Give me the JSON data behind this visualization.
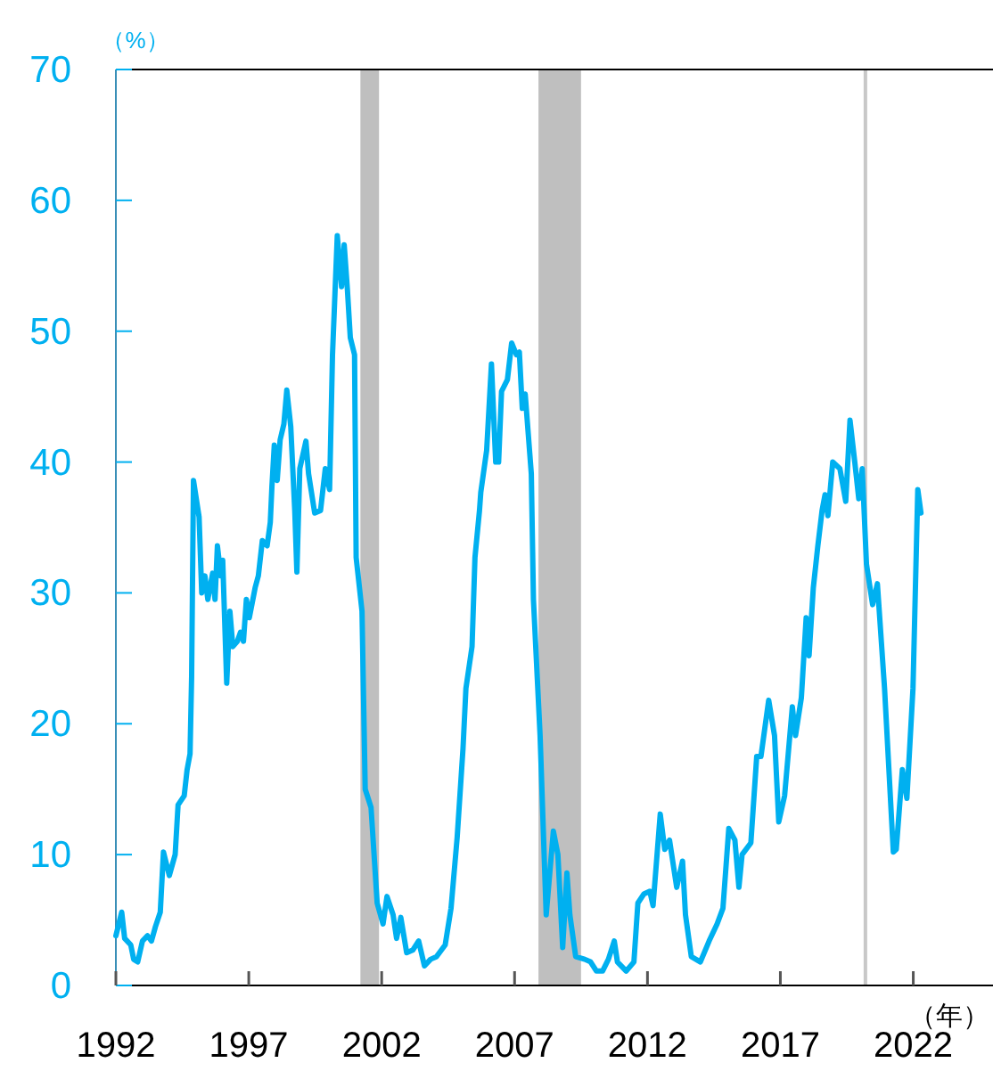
{
  "chart_data": {
    "type": "line",
    "ylabel": "（%）",
    "xlabel": "（年）",
    "xlim": [
      1992,
      2025
    ],
    "ylim": [
      0,
      70
    ],
    "xticks": [
      1992,
      1997,
      2002,
      2007,
      2012,
      2017,
      2022
    ],
    "yticks": [
      0,
      10,
      20,
      30,
      40,
      50,
      60,
      70
    ],
    "bands": [
      {
        "axis": "x",
        "from": 2001.2,
        "to": 2001.9,
        "color": "#bfbfbf"
      },
      {
        "axis": "x",
        "from": 2007.9,
        "to": 2009.5,
        "color": "#bfbfbf"
      }
    ],
    "ref_lines": [
      {
        "axis": "x",
        "value": 2020.2,
        "color": "#c8c8c8"
      }
    ],
    "x": [
      1992.0,
      1992.22,
      1992.33,
      1992.56,
      1992.67,
      1992.82,
      1993.0,
      1993.19,
      1993.34,
      1993.49,
      1993.67,
      1993.79,
      1994.01,
      1994.23,
      1994.34,
      1994.57,
      1994.68,
      1994.79,
      1994.85,
      1994.92,
      1995.13,
      1995.23,
      1995.35,
      1995.46,
      1995.64,
      1995.73,
      1995.82,
      1995.95,
      1996.02,
      1996.17,
      1996.29,
      1996.4,
      1996.57,
      1996.69,
      1996.8,
      1996.91,
      1997.02,
      1997.24,
      1997.36,
      1997.51,
      1997.69,
      1997.81,
      1997.87,
      1997.96,
      1998.07,
      1998.18,
      1998.32,
      1998.43,
      1998.58,
      1998.73,
      1998.81,
      1998.92,
      1999.15,
      1999.25,
      1999.48,
      1999.7,
      1999.88,
      2000.04,
      2000.15,
      2000.33,
      2000.49,
      2000.59,
      2000.71,
      2000.82,
      2000.98,
      2001.04,
      2001.26,
      2001.38,
      2001.6,
      2001.83,
      2002.05,
      2002.2,
      2002.43,
      2002.56,
      2002.72,
      2002.94,
      2003.17,
      2003.39,
      2003.61,
      2003.84,
      2004.06,
      2004.39,
      2004.61,
      2004.84,
      2005.06,
      2005.17,
      2005.4,
      2005.51,
      2005.68,
      2005.73,
      2005.95,
      2006.13,
      2006.29,
      2006.4,
      2006.51,
      2006.73,
      2006.89,
      2007.07,
      2007.18,
      2007.29,
      2007.4,
      2007.63,
      2007.71,
      2007.96,
      2008.19,
      2008.46,
      2008.63,
      2008.81,
      2008.97,
      2009.08,
      2009.3,
      2009.64,
      2009.86,
      2010.08,
      2010.31,
      2010.53,
      2010.75,
      2010.87,
      2011.2,
      2011.49,
      2011.64,
      2011.87,
      2012.09,
      2012.21,
      2012.48,
      2012.65,
      2012.83,
      2013.1,
      2013.32,
      2013.43,
      2013.65,
      2013.99,
      2014.32,
      2014.62,
      2014.84,
      2015.06,
      2015.29,
      2015.44,
      2015.56,
      2015.89,
      2016.11,
      2016.27,
      2016.56,
      2016.78,
      2016.94,
      2017.16,
      2017.45,
      2017.57,
      2017.79,
      2017.97,
      2018.08,
      2018.24,
      2018.41,
      2018.57,
      2018.68,
      2018.79,
      2018.97,
      2019.24,
      2019.46,
      2019.62,
      2019.8,
      2019.95,
      2020.08,
      2020.24,
      2020.47,
      2020.65,
      2020.92,
      2021.25,
      2021.36,
      2021.59,
      2021.76,
      2021.99,
      2022.17,
      2022.29
    ],
    "series": [
      {
        "color": "#00b0f0",
        "values": [
          3.8,
          5.6,
          3.6,
          3.1,
          2.0,
          1.8,
          3.4,
          3.8,
          3.4,
          4.5,
          5.6,
          10.2,
          8.4,
          10.0,
          13.8,
          14.5,
          16.5,
          17.7,
          23.6,
          38.6,
          35.8,
          30.0,
          31.3,
          29.5,
          31.5,
          29.5,
          33.6,
          31.3,
          32.5,
          23.1,
          28.6,
          25.9,
          26.3,
          27.0,
          26.3,
          29.5,
          28.1,
          30.4,
          31.3,
          34.0,
          33.6,
          35.4,
          38.1,
          41.3,
          38.6,
          41.7,
          42.9,
          45.5,
          42.7,
          36.3,
          31.6,
          39.5,
          41.6,
          39.1,
          36.1,
          36.3,
          39.5,
          37.9,
          48.2,
          57.3,
          53.4,
          56.6,
          53.2,
          49.5,
          48.2,
          32.7,
          28.6,
          15.0,
          13.6,
          6.3,
          4.7,
          6.8,
          5.4,
          3.6,
          5.2,
          2.5,
          2.7,
          3.4,
          1.5,
          2.0,
          2.2,
          3.1,
          5.9,
          11.3,
          18.1,
          22.7,
          25.9,
          32.7,
          36.3,
          37.7,
          40.9,
          47.5,
          40.0,
          40.0,
          45.4,
          46.3,
          49.1,
          48.2,
          48.4,
          44.1,
          45.2,
          39.1,
          29.5,
          19.1,
          5.4,
          11.8,
          10.0,
          2.9,
          8.6,
          5.4,
          2.2,
          2.0,
          1.8,
          1.1,
          1.1,
          2.0,
          3.4,
          1.8,
          1.1,
          1.8,
          6.3,
          7.0,
          7.2,
          6.1,
          13.1,
          10.4,
          11.1,
          7.5,
          9.5,
          5.4,
          2.2,
          1.8,
          3.4,
          4.7,
          5.9,
          12.0,
          11.1,
          7.5,
          10.0,
          10.9,
          17.5,
          17.5,
          21.8,
          19.1,
          12.5,
          14.5,
          21.3,
          19.1,
          22.0,
          28.1,
          25.2,
          30.4,
          33.6,
          36.3,
          37.5,
          35.9,
          40.0,
          39.5,
          37.0,
          43.2,
          40.0,
          37.2,
          39.5,
          32.2,
          29.1,
          30.7,
          22.7,
          10.2,
          10.4,
          16.5,
          14.3,
          22.7,
          37.9,
          36.1
        ]
      }
    ]
  }
}
